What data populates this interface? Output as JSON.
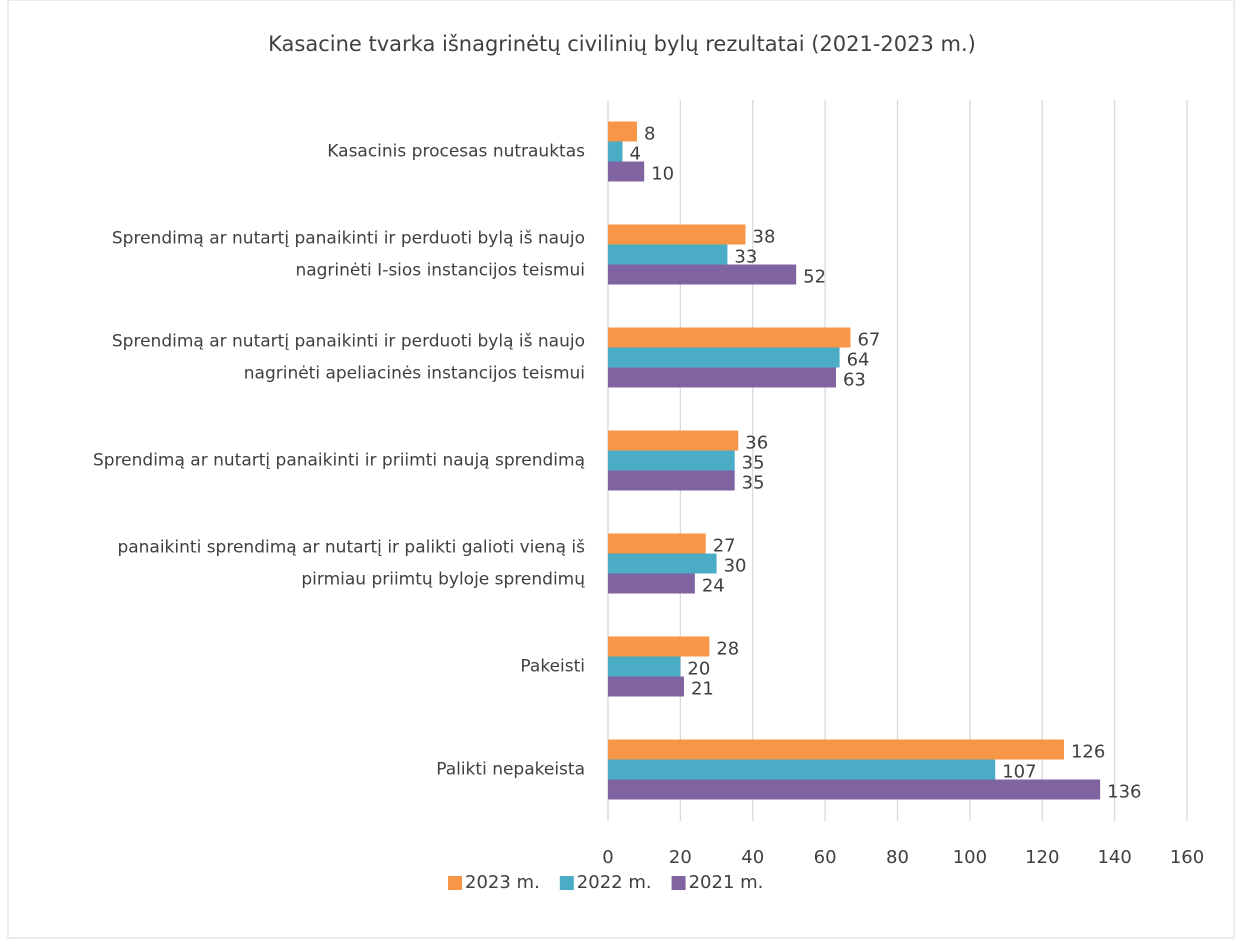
{
  "chart_data": {
    "type": "hbar",
    "title": "Kasacine tvarka išnagrinėtų civilinių bylų rezultatai (2021-2023 m.)",
    "categories": [
      [
        "Kasacinis procesas nutrauktas"
      ],
      [
        "Sprendimą ar nutartį panaikinti ir perduoti bylą iš naujo",
        "nagrinėti I-sios instancijos teismui"
      ],
      [
        "Sprendimą ar nutartį panaikinti ir perduoti bylą iš naujo",
        "nagrinėti apeliacinės instancijos teismui"
      ],
      [
        "Sprendimą ar nutartį panaikinti ir priimti naują sprendimą"
      ],
      [
        "panaikinti sprendimą ar nutartį ir palikti galioti vieną iš",
        "pirmiau priimtų byloje sprendimų"
      ],
      [
        "Pakeisti"
      ],
      [
        "Palikti nepakeista"
      ]
    ],
    "series": [
      {
        "name": "2023 m.",
        "color": "#f79646",
        "values": [
          8,
          38,
          67,
          36,
          27,
          28,
          126
        ]
      },
      {
        "name": "2022 m.",
        "color": "#4bacc6",
        "values": [
          4,
          33,
          64,
          35,
          30,
          20,
          107
        ]
      },
      {
        "name": "2021 m.",
        "color": "#8064a2",
        "values": [
          10,
          52,
          63,
          35,
          24,
          21,
          136
        ]
      }
    ],
    "xlim": [
      0,
      160
    ],
    "xticks": [
      0,
      20,
      40,
      60,
      80,
      100,
      120,
      140,
      160
    ],
    "grid": true,
    "legend": "bottom"
  }
}
